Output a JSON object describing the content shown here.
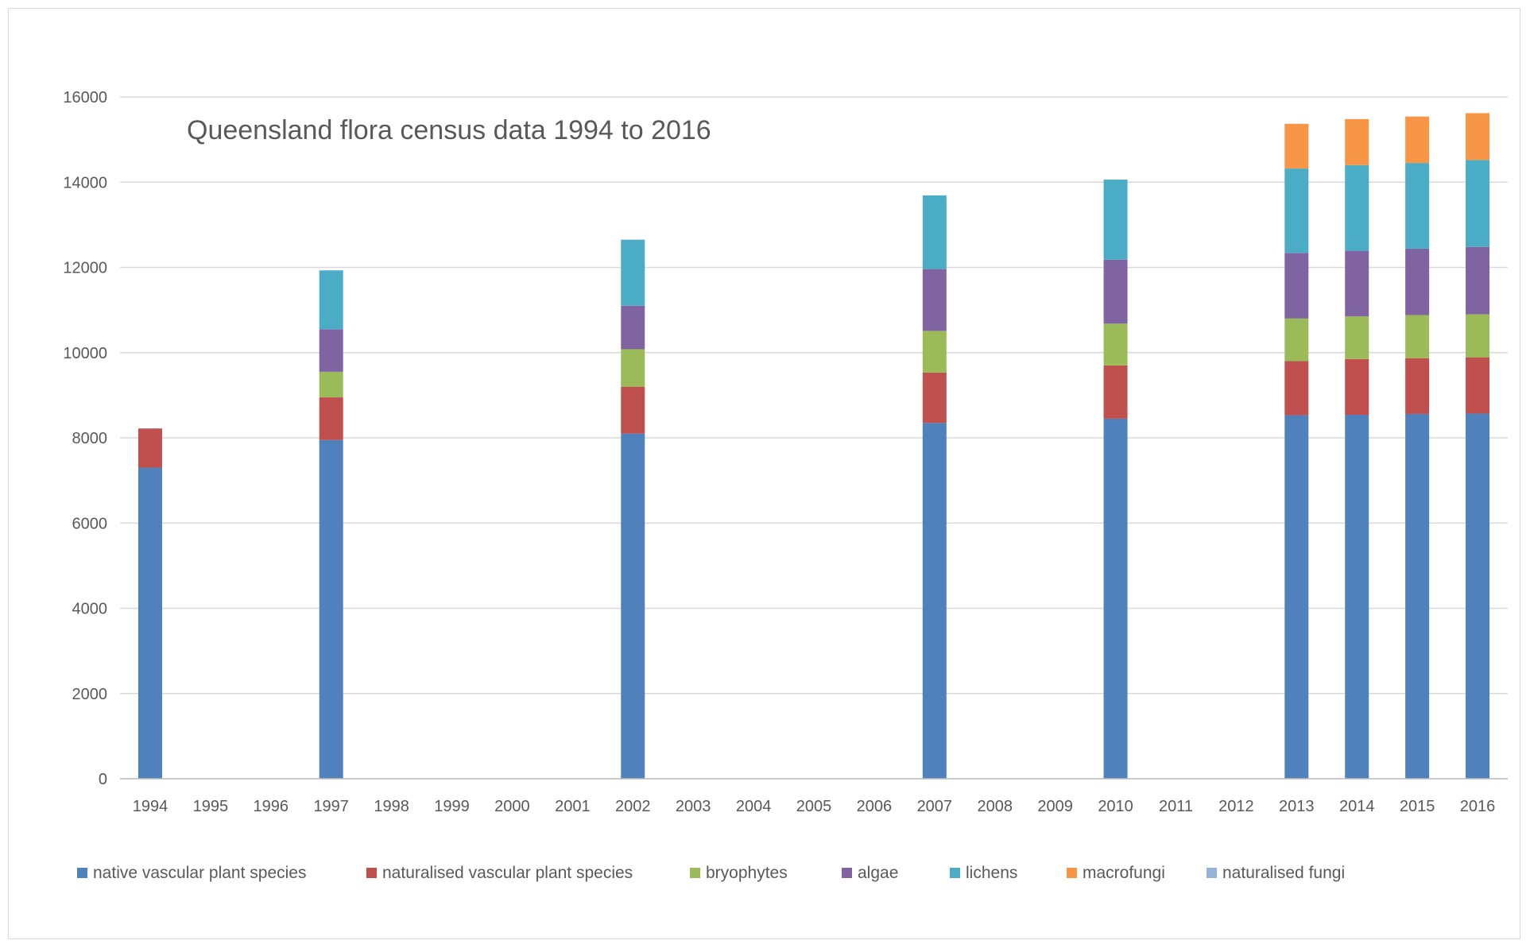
{
  "chart_data": {
    "type": "bar",
    "stacked": true,
    "title": "Queensland flora census data 1994 to 2016",
    "xlabel": "",
    "ylabel": "",
    "ylim": [
      0,
      16000
    ],
    "yticks": [
      0,
      2000,
      4000,
      6000,
      8000,
      10000,
      12000,
      14000,
      16000
    ],
    "grid": true,
    "legend_position": "bottom",
    "categories": [
      "1994",
      "1995",
      "1996",
      "1997",
      "1998",
      "1999",
      "2000",
      "2001",
      "2002",
      "2003",
      "2004",
      "2005",
      "2006",
      "2007",
      "2008",
      "2009",
      "2010",
      "2011",
      "2012",
      "2013",
      "2014",
      "2015",
      "2016"
    ],
    "series": [
      {
        "name": "native vascular plant species",
        "color": "#4f81bd",
        "values": [
          7300,
          0,
          0,
          7950,
          0,
          0,
          0,
          0,
          8100,
          0,
          0,
          0,
          0,
          8350,
          0,
          0,
          8450,
          0,
          0,
          8530,
          8540,
          8560,
          8570
        ]
      },
      {
        "name": "naturalised vascular plant species",
        "color": "#c0504d",
        "values": [
          920,
          0,
          0,
          1000,
          0,
          0,
          0,
          0,
          1100,
          0,
          0,
          0,
          0,
          1180,
          0,
          0,
          1250,
          0,
          0,
          1270,
          1310,
          1310,
          1320
        ]
      },
      {
        "name": "bryophytes",
        "color": "#9bbb59",
        "values": [
          0,
          0,
          0,
          600,
          0,
          0,
          0,
          0,
          880,
          0,
          0,
          0,
          0,
          980,
          0,
          0,
          980,
          0,
          0,
          1000,
          1000,
          1010,
          1010
        ]
      },
      {
        "name": "algae",
        "color": "#8064a2",
        "values": [
          0,
          0,
          0,
          1000,
          0,
          0,
          0,
          0,
          1020,
          0,
          0,
          0,
          0,
          1450,
          0,
          0,
          1500,
          0,
          0,
          1540,
          1540,
          1560,
          1580
        ]
      },
      {
        "name": "lichens",
        "color": "#4bacc6",
        "values": [
          0,
          0,
          0,
          1380,
          0,
          0,
          0,
          0,
          1550,
          0,
          0,
          0,
          0,
          1730,
          0,
          0,
          1880,
          0,
          0,
          1980,
          2010,
          2010,
          2040
        ]
      },
      {
        "name": "macrofungi",
        "color": "#f79646",
        "values": [
          0,
          0,
          0,
          0,
          0,
          0,
          0,
          0,
          0,
          0,
          0,
          0,
          0,
          0,
          0,
          0,
          0,
          0,
          0,
          1050,
          1080,
          1090,
          1100
        ]
      },
      {
        "name": "naturalised fungi",
        "color": "#95b3d7",
        "values": [
          0,
          0,
          0,
          0,
          0,
          0,
          0,
          0,
          0,
          0,
          0,
          0,
          0,
          0,
          0,
          0,
          0,
          0,
          0,
          0,
          0,
          0,
          0
        ]
      }
    ]
  }
}
